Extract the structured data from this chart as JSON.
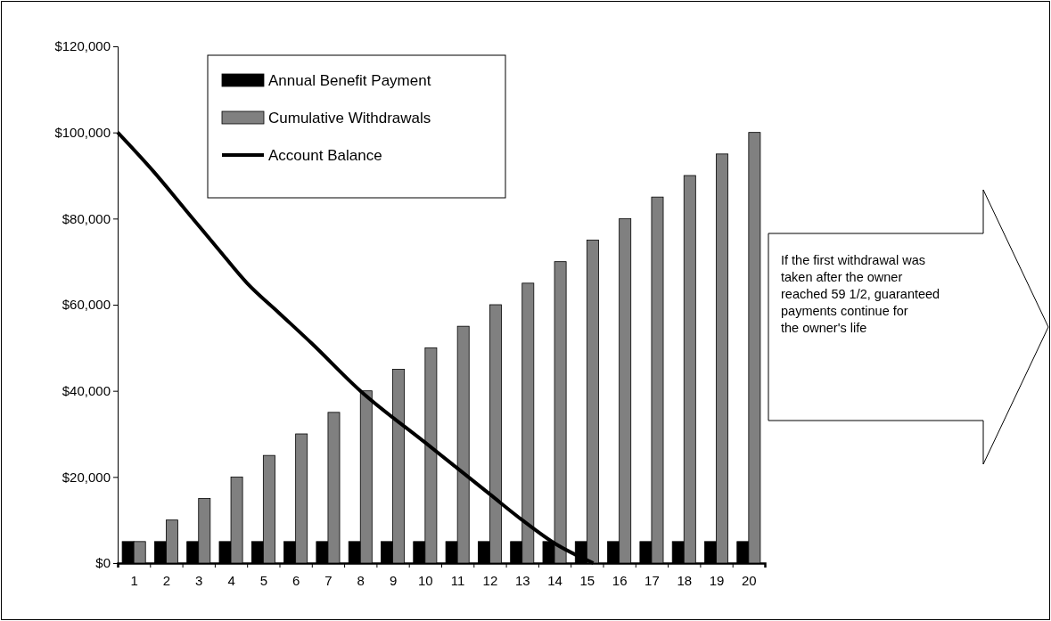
{
  "chart_data": {
    "type": "bar",
    "x": [
      1,
      2,
      3,
      4,
      5,
      6,
      7,
      8,
      9,
      10,
      11,
      12,
      13,
      14,
      15,
      16,
      17,
      18,
      19,
      20
    ],
    "xlim": [
      0.5,
      20.5
    ],
    "xticks": [
      {
        "value": 0.5,
        "label": null
      },
      1,
      {
        "value": 1.5,
        "label": null
      },
      2,
      {
        "value": 2.5,
        "label": null
      },
      3,
      {
        "value": 3.5,
        "label": null
      },
      4,
      {
        "value": 4.5,
        "label": null
      },
      5,
      {
        "value": 5.5,
        "label": null
      },
      6,
      {
        "value": 6.5,
        "label": null
      },
      7,
      {
        "value": 7.5,
        "label": null
      },
      8,
      {
        "value": 8.5,
        "label": null
      },
      9,
      {
        "value": 9.5,
        "label": null
      },
      10,
      {
        "value": 10.5,
        "label": null
      },
      11,
      {
        "value": 11.5,
        "label": null
      },
      12,
      {
        "value": 12.5,
        "label": null
      },
      13,
      {
        "value": 13.5,
        "label": null
      },
      14,
      {
        "value": 14.5,
        "label": null
      },
      15,
      {
        "value": 15.5,
        "label": null
      },
      16,
      {
        "value": 16.5,
        "label": null
      },
      17,
      {
        "value": 17.5,
        "label": null
      },
      18,
      {
        "value": 18.5,
        "label": null
      },
      19,
      {
        "value": 19.5,
        "label": null
      },
      20,
      {
        "value": 20.5,
        "label": null
      }
    ],
    "ylim": [
      0,
      120000
    ],
    "yticks": [
      {
        "value": 0,
        "label": "$0"
      },
      {
        "value": 20000,
        "label": "$20,000"
      },
      {
        "value": 40000,
        "label": "$40,000"
      },
      {
        "value": 60000,
        "label": "$60,000"
      },
      {
        "value": 80000,
        "label": "$80,000"
      },
      {
        "value": 100000,
        "label": "$100,000"
      },
      {
        "value": 120000,
        "label": "$120,000"
      }
    ],
    "legend": "top left",
    "series": [
      {
        "name": "Annual Benefit Payment",
        "color": "#000000",
        "values": [
          5000,
          5000,
          5000,
          5000,
          5000,
          5000,
          5000,
          5000,
          5000,
          5000,
          5000,
          5000,
          5000,
          5000,
          5000,
          5000,
          5000,
          5000,
          5000,
          5000
        ]
      },
      {
        "name": "Cumulative Withdrawals",
        "color": "#808080",
        "values": [
          5000,
          10000,
          15000,
          20000,
          25000,
          30000,
          35000,
          40000,
          45000,
          50000,
          55000,
          60000,
          65000,
          70000,
          75000,
          80000,
          85000,
          90000,
          95000,
          100000
        ]
      },
      {
        "name": "Account Balance",
        "type": "line",
        "color": "#000000",
        "x": [
          0.5,
          1.6,
          2.6,
          3.6,
          4.5,
          5.5,
          6.5,
          8,
          10,
          11,
          12,
          13,
          14,
          15.2
        ],
        "values": [
          100000,
          91000,
          82000,
          73000,
          65000,
          58000,
          51000,
          40000,
          28000,
          22000,
          16000,
          10000,
          4600,
          0
        ]
      }
    ],
    "annotations": [
      "If the first withdrawal was\ntaken after the owner\nreached 59 1/2, guaranteed\npayments continue for\nthe owner's life"
    ]
  }
}
